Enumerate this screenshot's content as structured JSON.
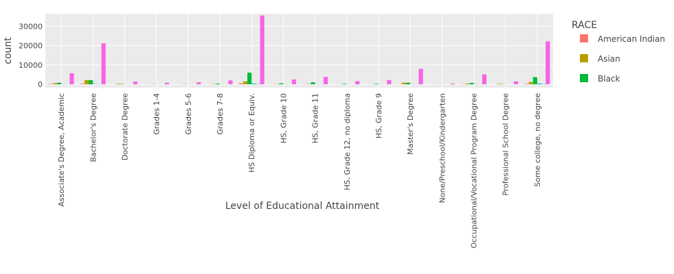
{
  "chart_data": {
    "type": "bar",
    "barmode": "group",
    "xlabel": "Level of Educational Attainment",
    "ylabel": "count",
    "ylim": [
      0,
      36500
    ],
    "yticks": [
      0,
      10000,
      20000,
      30000
    ],
    "ytick_labels": [
      "0",
      "10000",
      "20000",
      "30000"
    ],
    "grid": true,
    "legend": {
      "title": "RACE",
      "placement": "right",
      "visible_entries": [
        "American Indian",
        "Asian",
        "Black"
      ]
    },
    "categories": [
      "Associate's Degree, Academic",
      "Bachelor's Degree",
      "Doctorate Degree",
      "Grades 1-4",
      "Grades 5-6",
      "Grades 7-8",
      "HS Diploma or Equiv.",
      "HS, Grade 10",
      "HS, Grade 11",
      "HS, Grade 12, no diploma",
      "HS, Grade 9",
      "Master's Degree",
      "None/Preschool/Kindergarten",
      "Occupational/Vocational Program Degree",
      "Professional School Degree",
      "Some college, no degree"
    ],
    "series": [
      {
        "name": "American Indian",
        "color": "#F8766D",
        "values": [
          150,
          250,
          10,
          10,
          10,
          30,
          500,
          60,
          90,
          30,
          30,
          60,
          10,
          90,
          10,
          300
        ]
      },
      {
        "name": "Asian",
        "color": "#B79F00",
        "values": [
          550,
          2200,
          300,
          50,
          60,
          120,
          1500,
          100,
          200,
          80,
          60,
          800,
          40,
          350,
          250,
          1200
        ]
      },
      {
        "name": "Black",
        "color": "#00BA38",
        "values": [
          800,
          2100,
          150,
          80,
          90,
          350,
          6000,
          500,
          1000,
          250,
          250,
          800,
          50,
          700,
          100,
          3700
        ]
      },
      {
        "color": "#00BFC4",
        "values": [
          60,
          150,
          30,
          20,
          20,
          40,
          400,
          40,
          60,
          20,
          20,
          60,
          10,
          80,
          30,
          400
        ]
      },
      {
        "color": "#619CFF",
        "values": [
          30,
          80,
          20,
          10,
          10,
          20,
          150,
          20,
          30,
          10,
          10,
          40,
          5,
          30,
          15,
          200
        ]
      },
      {
        "color": "#F564E3",
        "values": [
          5700,
          21200,
          1400,
          800,
          1000,
          2000,
          35600,
          2500,
          3800,
          1600,
          2200,
          8000,
          400,
          5100,
          1500,
          22200
        ]
      }
    ]
  }
}
